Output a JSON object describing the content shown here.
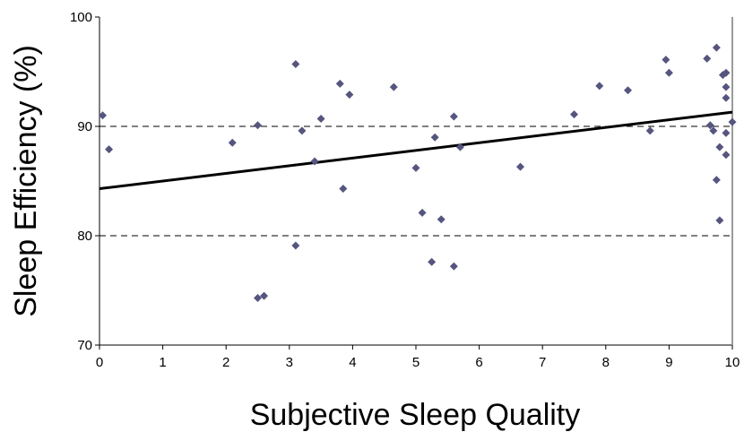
{
  "chart_data": {
    "type": "scatter",
    "xlabel": "Subjective Sleep Quality",
    "ylabel": "Sleep Efficiency (%)",
    "xlim": [
      0,
      10
    ],
    "ylim": [
      70,
      100
    ],
    "xticks": [
      "0",
      "1",
      "2",
      "3",
      "4",
      "5",
      "6",
      "7",
      "8",
      "9",
      "10"
    ],
    "yticks": [
      "70",
      "80",
      "90",
      "100"
    ],
    "grid": "dashed horizontal at 80 and 90",
    "colors": {
      "points": "#55557f",
      "trend": "#000000",
      "grid": "#000000"
    },
    "points": [
      [
        0.05,
        91.0
      ],
      [
        0.15,
        87.9
      ],
      [
        2.1,
        88.5
      ],
      [
        2.5,
        74.3
      ],
      [
        2.5,
        90.1
      ],
      [
        2.6,
        74.5
      ],
      [
        3.1,
        95.7
      ],
      [
        3.1,
        79.1
      ],
      [
        3.2,
        89.6
      ],
      [
        3.4,
        86.8
      ],
      [
        3.5,
        90.7
      ],
      [
        3.8,
        93.9
      ],
      [
        3.85,
        84.3
      ],
      [
        3.95,
        92.9
      ],
      [
        4.65,
        93.6
      ],
      [
        5.0,
        86.2
      ],
      [
        5.1,
        82.1
      ],
      [
        5.25,
        77.6
      ],
      [
        5.3,
        89.0
      ],
      [
        5.4,
        81.5
      ],
      [
        5.6,
        90.9
      ],
      [
        5.6,
        77.2
      ],
      [
        5.7,
        88.1
      ],
      [
        6.65,
        86.3
      ],
      [
        7.5,
        91.1
      ],
      [
        7.9,
        93.7
      ],
      [
        8.35,
        93.3
      ],
      [
        8.7,
        89.6
      ],
      [
        8.95,
        96.1
      ],
      [
        9.0,
        94.9
      ],
      [
        9.6,
        96.2
      ],
      [
        9.65,
        90.1
      ],
      [
        9.7,
        89.6
      ],
      [
        9.75,
        97.2
      ],
      [
        9.75,
        85.1
      ],
      [
        9.8,
        88.1
      ],
      [
        9.8,
        81.4
      ],
      [
        9.85,
        94.7
      ],
      [
        9.9,
        94.9
      ],
      [
        9.9,
        93.6
      ],
      [
        9.9,
        92.6
      ],
      [
        9.9,
        87.4
      ],
      [
        9.9,
        89.4
      ],
      [
        10.0,
        90.4
      ]
    ],
    "trendline": {
      "x": [
        0,
        10
      ],
      "y": [
        84.3,
        91.3
      ]
    }
  }
}
